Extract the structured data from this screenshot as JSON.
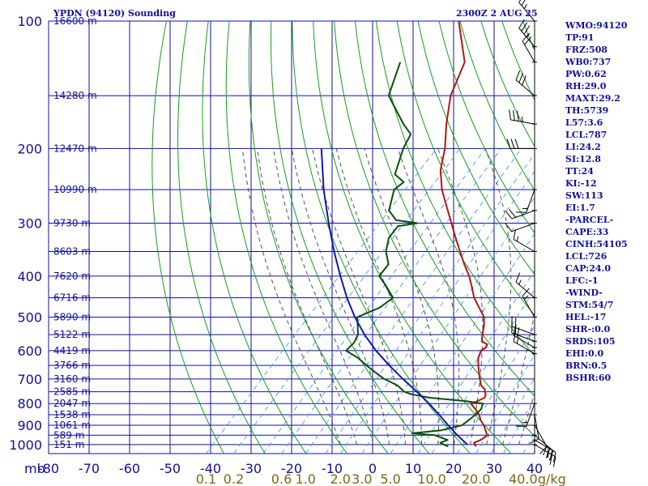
{
  "header": {
    "title": "YPDN (94120) Sounding",
    "datetime": "2300Z  2 AUG 25"
  },
  "colors": {
    "grid": "#10109c",
    "dry_adiabat": "#14a014",
    "moist_adiabat": "#505050",
    "mixing_ratio": "#5aa0e6",
    "temperature": "#b41414",
    "dewpoint": "#0a500a",
    "parcel": "#1414b4",
    "mixing_label": "#7a6a14",
    "wind_barb": "#000000"
  },
  "chart_data": {
    "type": "skew-t",
    "pressure_axis": {
      "unit_label": "mb",
      "ticks": [
        100,
        200,
        300,
        400,
        500,
        600,
        700,
        800,
        900,
        1000
      ],
      "range": [
        100,
        1050
      ]
    },
    "temperature_axis": {
      "ticks": [
        -80,
        -70,
        -60,
        -50,
        -40,
        -30,
        -20,
        -10,
        0,
        10,
        20,
        30,
        40
      ],
      "range": [
        -80,
        40
      ]
    },
    "height_labels": [
      {
        "p": 100,
        "label": "16600 m"
      },
      {
        "p": 150,
        "label": "14280 m"
      },
      {
        "p": 200,
        "label": "12470 m"
      },
      {
        "p": 250,
        "label": "10990 m"
      },
      {
        "p": 300,
        "label": "9730 m"
      },
      {
        "p": 350,
        "label": "8603 m"
      },
      {
        "p": 400,
        "label": "7620 m"
      },
      {
        "p": 450,
        "label": "6716 m"
      },
      {
        "p": 500,
        "label": "5890 m"
      },
      {
        "p": 550,
        "label": "5122 m"
      },
      {
        "p": 600,
        "label": "4419 m"
      },
      {
        "p": 650,
        "label": "3766 m"
      },
      {
        "p": 700,
        "label": "3160 m"
      },
      {
        "p": 750,
        "label": "2585 m"
      },
      {
        "p": 800,
        "label": "2047 m"
      },
      {
        "p": 850,
        "label": "1538 m"
      },
      {
        "p": 900,
        "label": "1061 m"
      },
      {
        "p": 950,
        "label": "589 m"
      },
      {
        "p": 1000,
        "label": "151 m"
      }
    ],
    "mixing_ratio_labels": [
      {
        "w": 0.1,
        "label": "0.1"
      },
      {
        "w": 0.2,
        "label": "0.2"
      },
      {
        "w": 0.6,
        "label": "0.6"
      },
      {
        "w": 1.0,
        "label": "1.0"
      },
      {
        "w": 2.0,
        "label": "2.0"
      },
      {
        "w": 3.0,
        "label": "3.0"
      },
      {
        "w": 5.0,
        "label": "5.0"
      },
      {
        "w": 10.0,
        "label": "10.0"
      },
      {
        "w": 20.0,
        "label": "20.0"
      },
      {
        "w": 40.0,
        "label": "40.0"
      }
    ],
    "mixing_ratio_unit": "g/kg",
    "series": [
      {
        "key": "temperature",
        "points": [
          [
            1010,
            23.8
          ],
          [
            1000,
            23.2
          ],
          [
            990,
            22.5
          ],
          [
            975,
            23.5
          ],
          [
            950,
            24.0
          ],
          [
            925,
            22.4
          ],
          [
            900,
            20.8
          ],
          [
            875,
            18.8
          ],
          [
            850,
            17.2
          ],
          [
            825,
            15.0
          ],
          [
            800,
            12.5
          ],
          [
            790,
            13.5
          ],
          [
            775,
            14.6
          ],
          [
            760,
            14.0
          ],
          [
            750,
            13.2
          ],
          [
            740,
            12.6
          ],
          [
            725,
            10.8
          ],
          [
            700,
            9.0
          ],
          [
            675,
            7.2
          ],
          [
            650,
            5.4
          ],
          [
            625,
            3.7
          ],
          [
            600,
            2.6
          ],
          [
            590,
            3.1
          ],
          [
            580,
            2.7
          ],
          [
            570,
            0.6
          ],
          [
            550,
            -0.8
          ],
          [
            525,
            -2.4
          ],
          [
            500,
            -4.5
          ],
          [
            475,
            -7.9
          ],
          [
            450,
            -11.5
          ],
          [
            425,
            -14.5
          ],
          [
            400,
            -17.8
          ],
          [
            375,
            -21.8
          ],
          [
            350,
            -25.8
          ],
          [
            325,
            -30.1
          ],
          [
            300,
            -34.6
          ],
          [
            275,
            -39.5
          ],
          [
            250,
            -44.8
          ],
          [
            225,
            -49.7
          ],
          [
            200,
            -53.7
          ],
          [
            175,
            -59.1
          ],
          [
            150,
            -64.7
          ],
          [
            125,
            -69.1
          ],
          [
            100,
            -80.2
          ]
        ]
      },
      {
        "key": "dewpoint",
        "points": [
          [
            1010,
            17.0
          ],
          [
            1000,
            15.5
          ],
          [
            990,
            14.2
          ],
          [
            975,
            15.3
          ],
          [
            950,
            11.0
          ],
          [
            940,
            5.0
          ],
          [
            925,
            11.5
          ],
          [
            900,
            15.4
          ],
          [
            875,
            15.9
          ],
          [
            850,
            16.3
          ],
          [
            825,
            16.4
          ],
          [
            800,
            15.5
          ],
          [
            790,
            11.0
          ],
          [
            775,
            1.0
          ],
          [
            760,
            -4.5
          ],
          [
            750,
            -6.7
          ],
          [
            725,
            -9.8
          ],
          [
            700,
            -14.6
          ],
          [
            675,
            -18.4
          ],
          [
            650,
            -22.2
          ],
          [
            625,
            -25.9
          ],
          [
            600,
            -30.7
          ],
          [
            575,
            -30.6
          ],
          [
            550,
            -31.5
          ],
          [
            500,
            -35.8
          ],
          [
            475,
            -32.5
          ],
          [
            450,
            -31.5
          ],
          [
            425,
            -35.5
          ],
          [
            400,
            -40.0
          ],
          [
            375,
            -40.5
          ],
          [
            350,
            -44.1
          ],
          [
            325,
            -46.6
          ],
          [
            305,
            -47.1
          ],
          [
            300,
            -43.0
          ],
          [
            295,
            -49.0
          ],
          [
            280,
            -53.0
          ],
          [
            250,
            -56.6
          ],
          [
            240,
            -56.0
          ],
          [
            230,
            -60.0
          ],
          [
            200,
            -64.0
          ],
          [
            185,
            -65.5
          ],
          [
            175,
            -69.7
          ],
          [
            150,
            -80.0
          ],
          [
            125,
            -85.0
          ]
        ]
      },
      {
        "key": "parcel",
        "points": [
          [
            1000,
            21.3
          ],
          [
            950,
            16.6
          ],
          [
            900,
            12.0
          ],
          [
            850,
            7.3
          ],
          [
            800,
            2.2
          ],
          [
            750,
            -3.6
          ],
          [
            700,
            -10.0
          ],
          [
            650,
            -16.6
          ],
          [
            600,
            -23.3
          ],
          [
            550,
            -29.9
          ],
          [
            500,
            -36.4
          ],
          [
            450,
            -42.9
          ],
          [
            400,
            -49.6
          ],
          [
            350,
            -56.9
          ],
          [
            300,
            -64.9
          ],
          [
            250,
            -74.0
          ],
          [
            200,
            -84.2
          ]
        ]
      }
    ],
    "wind_barbs": [
      {
        "p": 100,
        "dir": 320,
        "spd": 25
      },
      {
        "p": 115,
        "dir": 320,
        "spd": 35
      },
      {
        "p": 125,
        "dir": 330,
        "spd": 20
      },
      {
        "p": 150,
        "dir": 310,
        "spd": 30
      },
      {
        "p": 175,
        "dir": 280,
        "spd": 35
      },
      {
        "p": 200,
        "dir": 270,
        "spd": 30
      },
      {
        "p": 250,
        "dir": 200,
        "spd": 15
      },
      {
        "p": 280,
        "dir": 250,
        "spd": 20
      },
      {
        "p": 300,
        "dir": 250,
        "spd": 10
      },
      {
        "p": 350,
        "dir": 300,
        "spd": 15
      },
      {
        "p": 450,
        "dir": 310,
        "spd": 15
      },
      {
        "p": 500,
        "dir": 330,
        "spd": 15
      },
      {
        "p": 550,
        "dir": 290,
        "spd": 20
      },
      {
        "p": 570,
        "dir": 290,
        "spd": 20
      },
      {
        "p": 590,
        "dir": 300,
        "spd": 20
      },
      {
        "p": 610,
        "dir": 300,
        "spd": 15
      },
      {
        "p": 800,
        "dir": 200,
        "spd": 15
      },
      {
        "p": 850,
        "dir": 170,
        "spd": 10
      },
      {
        "p": 900,
        "dir": 150,
        "spd": 10
      },
      {
        "p": 950,
        "dir": 130,
        "spd": 30
      },
      {
        "p": 975,
        "dir": 120,
        "spd": 30
      },
      {
        "p": 1000,
        "dir": 120,
        "spd": 25
      }
    ],
    "indices": [
      "WMO:94120",
      "TP:91",
      "FRZ:508",
      "WB0:737",
      "PW:0.62",
      "RH:29.0",
      "MAXT:29.2",
      "TH:5739",
      "L57:3.6",
      "LCL:787",
      "LI:24.2",
      "SI:12.8",
      "TT:24",
      "KI:-12",
      "SW:113",
      "EI:1.7",
      "-PARCEL-",
      "CAPE:33",
      "CINH:54105",
      "LCL:726",
      "CAP:24.0",
      "LFC:-1",
      "-WIND-",
      "STM:54/7",
      "HEL:-17",
      "SHR-:0.0",
      "SRDS:105",
      "EHI:0.0",
      "BRN:0.5",
      "BSHR:60"
    ]
  }
}
